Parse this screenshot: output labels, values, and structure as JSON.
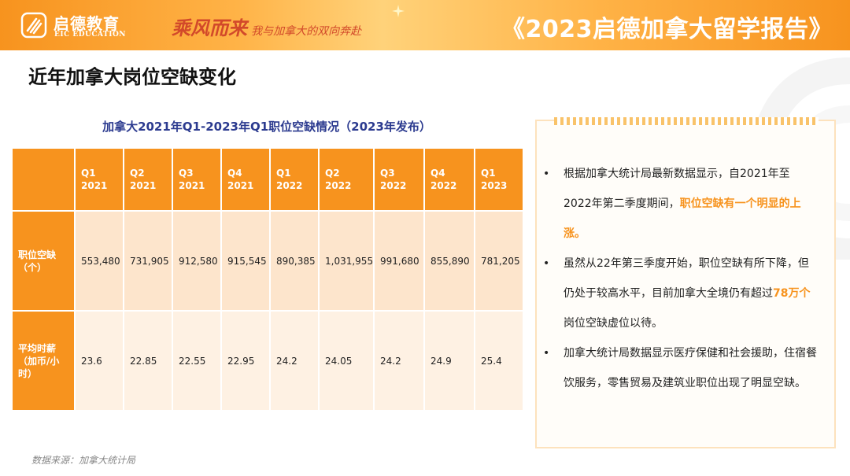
{
  "header": {
    "logo_cn": "启德教育",
    "logo_en": "EIC EDUCATION",
    "slogan_main": "乘风而来",
    "slogan_sub": "我与加拿大的双向奔赴",
    "report_title": "《2023启德加拿大留学报告》"
  },
  "page_title": "近年加拿大岗位空缺变化",
  "table": {
    "caption": "加拿大2021年Q1-2023年Q1职位空缺情况（2023年发布）",
    "columns": [
      {
        "q": "Q1",
        "y": "2021"
      },
      {
        "q": "Q2",
        "y": "2021"
      },
      {
        "q": "Q3",
        "y": "2021"
      },
      {
        "q": "Q4",
        "y": "2021"
      },
      {
        "q": "Q1",
        "y": "2022"
      },
      {
        "q": "Q2",
        "y": "2022"
      },
      {
        "q": "Q3",
        "y": "2022"
      },
      {
        "q": "Q4",
        "y": "2022"
      },
      {
        "q": "Q1",
        "y": "2023"
      }
    ],
    "rows": [
      {
        "label_line1": "职位空缺",
        "label_line2": "（个）",
        "label_line3": "",
        "values": [
          "553,480",
          "731,905",
          "912,580",
          "915,545",
          "890,385",
          "1,031,955",
          "991,680",
          "855,890",
          "781,205"
        ]
      },
      {
        "label_line1": "平均时薪",
        "label_line2": "（加币/小",
        "label_line3": "时）",
        "values": [
          "23.6",
          "22.85",
          "22.55",
          "22.95",
          "24.2",
          "24.05",
          "24.2",
          "24.9",
          "25.4"
        ]
      }
    ]
  },
  "source": "数据来源：加拿大统计局",
  "notes": {
    "bullet": "•",
    "items": [
      {
        "before": "根据加拿大统计局最新数据显示，自2021年至2022年第二季度期间，",
        "highlight": "职位空缺有一个明显的上涨。",
        "after": ""
      },
      {
        "before": "虽然从22年第三季度开始，职位空缺有所下降，但仍处于较高水平，目前加拿大全境仍有超过",
        "highlight": "78万个",
        "after": "岗位空缺虚位以待。"
      },
      {
        "before": "加拿大统计局数据显示医疗保健和社会援助，住宿餐饮服务，零售贸易及建筑业职位出现了明显空缺。",
        "highlight": "",
        "after": ""
      }
    ]
  },
  "colors": {
    "accent": "#f7931e",
    "caption": "#2b3a8f",
    "row1_bg": "#fde5cc",
    "row2_bg": "#fef1e3"
  }
}
